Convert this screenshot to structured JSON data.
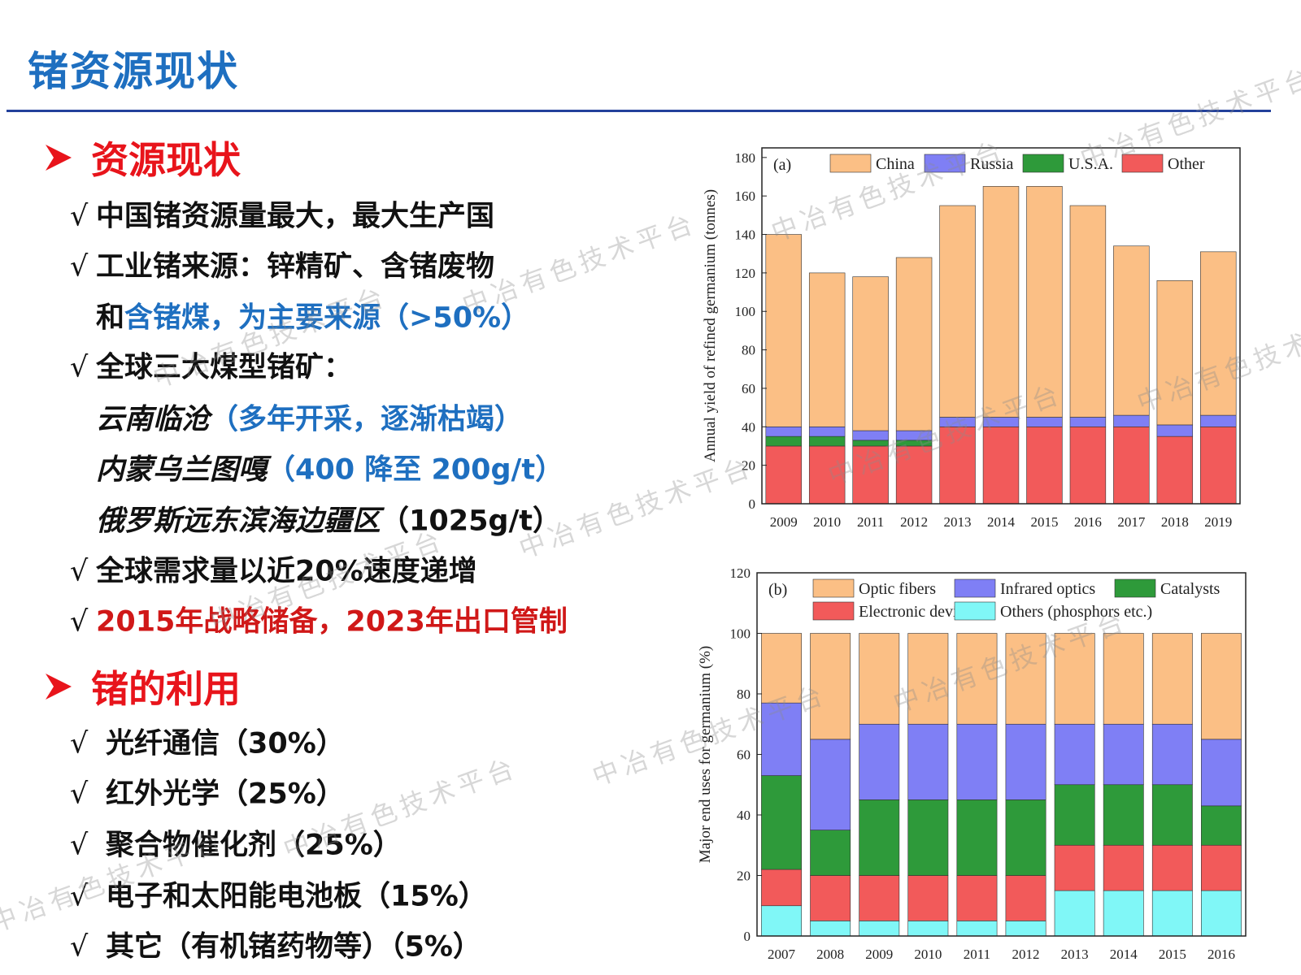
{
  "header": {
    "title": "锗资源现状"
  },
  "check": "√",
  "watermark": "中冶有色技术平台",
  "sections": [
    {
      "heading": "资源现状",
      "items": [
        [
          "中国锗资源量最大，最大生产国"
        ],
        [
          "工业锗来源：锌精矿、含锗废物"
        ],
        [
          "和",
          "含锗煤，为主要来源（>50%）"
        ],
        [
          "全球三大煤型锗矿："
        ],
        [
          "云南临沧",
          "（多年开采，逐渐枯竭）"
        ],
        [
          "内蒙乌兰图嘎",
          "（400 降至 200g/t）"
        ],
        [
          "俄罗斯远东滨海边疆区",
          "（1025g/t）"
        ],
        [
          "全球需求量以近20%速度递增"
        ],
        [
          "2015年战略储备，2023年出口管制"
        ]
      ]
    },
    {
      "heading": "锗的利用",
      "items": [
        [
          "光纤通信（30%）"
        ],
        [
          "红外光学（25%）"
        ],
        [
          "聚合物催化剂（25%）"
        ],
        [
          "电子和太阳能电池板（15%）"
        ],
        [
          "其它（有机锗药物等）（5%）"
        ]
      ]
    }
  ],
  "chart_data": [
    {
      "type": "bar",
      "stacked": true,
      "panel": "(a)",
      "y_label": "Annual yield of refined germanium (tonnes)",
      "categories": [
        "2009",
        "2010",
        "2011",
        "2012",
        "2013",
        "2014",
        "2015",
        "2016",
        "2017",
        "2018",
        "2019"
      ],
      "series": [
        {
          "name": "China",
          "color": "#fbbf85",
          "values": [
            100,
            80,
            80,
            90,
            110,
            120,
            120,
            110,
            88,
            75,
            85
          ]
        },
        {
          "name": "Russia",
          "color": "#7f7ff5",
          "values": [
            5,
            5,
            5,
            5,
            5,
            5,
            5,
            5,
            6,
            6,
            6
          ]
        },
        {
          "name": "U.S.A.",
          "color": "#2e9a3a",
          "values": [
            5,
            5,
            3,
            3,
            0,
            0,
            0,
            0,
            0,
            0,
            0
          ]
        },
        {
          "name": "Other",
          "color": "#f25a5a",
          "values": [
            30,
            30,
            30,
            30,
            40,
            40,
            40,
            40,
            40,
            35,
            40
          ]
        }
      ],
      "ylim": [
        0,
        185
      ],
      "yticks": [
        0,
        20,
        40,
        60,
        80,
        100,
        120,
        140,
        160,
        180
      ]
    },
    {
      "type": "bar",
      "stacked": true,
      "panel": "(b)",
      "y_label": "Major end uses for germanium (%)",
      "categories": [
        "2007",
        "2008",
        "2009",
        "2010",
        "2011",
        "2012",
        "2013",
        "2014",
        "2015",
        "2016"
      ],
      "series": [
        {
          "name": "Optic fibers",
          "color": "#fbbf85",
          "values": [
            23,
            35,
            30,
            30,
            30,
            30,
            30,
            30,
            30,
            35
          ]
        },
        {
          "name": "Infrared optics",
          "color": "#7f7ff5",
          "values": [
            24,
            30,
            25,
            25,
            25,
            25,
            20,
            20,
            20,
            22
          ]
        },
        {
          "name": "Catalysts",
          "color": "#2e9a3a",
          "values": [
            31,
            15,
            25,
            25,
            25,
            25,
            20,
            20,
            20,
            13
          ]
        },
        {
          "name": "Electronic devices",
          "color": "#f25a5a",
          "values": [
            12,
            15,
            15,
            15,
            15,
            15,
            15,
            15,
            15,
            15
          ]
        },
        {
          "name": "Others (phosphors etc.)",
          "color": "#80f7f7",
          "values": [
            10,
            5,
            5,
            5,
            5,
            5,
            15,
            15,
            15,
            15
          ]
        }
      ],
      "ylim": [
        0,
        120
      ],
      "yticks": [
        0,
        20,
        40,
        60,
        80,
        100,
        120
      ]
    }
  ]
}
